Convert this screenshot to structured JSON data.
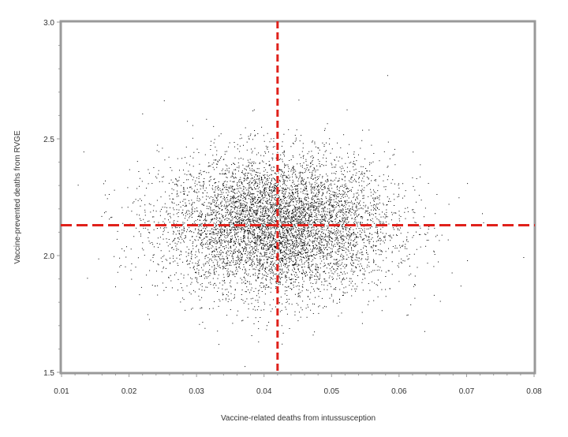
{
  "chart_data": {
    "type": "scatter",
    "xlabel": "Vaccine-related deaths from intussusception",
    "ylabel": "Vaccine-prevented deaths from RVGE",
    "xlim": [
      0.01,
      0.08
    ],
    "ylim": [
      1.5,
      3.0
    ],
    "x_ticks": [
      "0.01",
      "0.02",
      "0.03",
      "0.04",
      "0.05",
      "0.06",
      "0.07",
      "0.08"
    ],
    "y_ticks": [
      "1.5",
      "2.0",
      "2.5",
      "3.0"
    ],
    "x_tick_values": [
      0.01,
      0.02,
      0.03,
      0.04,
      0.05,
      0.06,
      0.07,
      0.08
    ],
    "y_tick_values": [
      1.5,
      2.0,
      2.5,
      3.0
    ],
    "reference_lines": {
      "vertical_x": 0.042,
      "horizontal_y": 2.13,
      "color": "#e0211b",
      "style": "dashed"
    },
    "point_cloud": {
      "description_values": {
        "n_points": 20000,
        "x_mean": 0.042,
        "x_sd": 0.0085,
        "y_mean": 2.13,
        "y_sd": 0.15
      },
      "color": "#000000"
    },
    "frame_color": "#999999",
    "grid": false,
    "legend": "none"
  }
}
